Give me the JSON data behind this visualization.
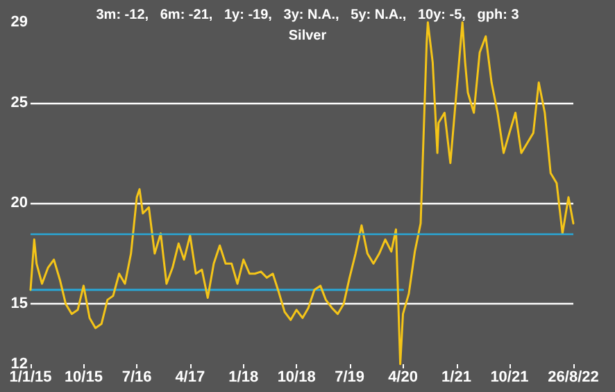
{
  "chart_data": {
    "type": "line",
    "title": "Silver",
    "subtitle": "3m: -12,   6m: -21,   1y: -19,   3y: N.A.,   5y: N.A.,   10y: -5,   gph: 3",
    "xlim": [
      "2015-01-01",
      "2022-08-26"
    ],
    "xticks": [
      {
        "value": "2015-01-01",
        "label": "1/1/15"
      },
      {
        "value": "2015-10-01",
        "label": "10/15"
      },
      {
        "value": "2016-07-01",
        "label": "7/16"
      },
      {
        "value": "2017-04-01",
        "label": "4/17"
      },
      {
        "value": "2018-01-01",
        "label": "1/18"
      },
      {
        "value": "2018-10-01",
        "label": "10/18"
      },
      {
        "value": "2019-07-01",
        "label": "7/19"
      },
      {
        "value": "2020-04-01",
        "label": "4/20"
      },
      {
        "value": "2021-01-01",
        "label": "1/21"
      },
      {
        "value": "2021-10-01",
        "label": "10/21"
      },
      {
        "value": "2022-08-26",
        "label": "26/8/22"
      }
    ],
    "ylim": [
      12,
      29
    ],
    "yticks": [
      12,
      15,
      20,
      25,
      29
    ],
    "grid": "y",
    "marker": "none",
    "line_style": "solid",
    "ref_lines": [
      {
        "axis": "y",
        "value": 18.5,
        "color": "#29a8d8"
      }
    ],
    "series": [
      {
        "color": "#f5c518",
        "x": [
          "2015-01-01",
          "2015-01-20",
          "2015-02-01",
          "2015-03-01",
          "2015-04-01",
          "2015-05-01",
          "2015-06-01",
          "2015-07-01",
          "2015-08-01",
          "2015-09-01",
          "2015-10-01",
          "2015-11-01",
          "2015-12-01",
          "2016-01-01",
          "2016-02-01",
          "2016-03-01",
          "2016-04-01",
          "2016-05-01",
          "2016-06-01",
          "2016-07-01",
          "2016-07-15",
          "2016-08-01",
          "2016-09-01",
          "2016-10-01",
          "2016-11-01",
          "2016-12-01",
          "2017-01-01",
          "2017-02-01",
          "2017-03-01",
          "2017-04-01",
          "2017-05-01",
          "2017-06-01",
          "2017-07-01",
          "2017-08-01",
          "2017-09-01",
          "2017-10-01",
          "2017-11-01",
          "2017-12-01",
          "2018-01-01",
          "2018-02-01",
          "2018-03-01",
          "2018-04-01",
          "2018-05-01",
          "2018-06-01",
          "2018-07-01",
          "2018-08-01",
          "2018-09-01",
          "2018-10-01",
          "2018-11-01",
          "2018-12-01",
          "2019-01-01",
          "2019-02-01",
          "2019-03-01",
          "2019-04-01",
          "2019-05-01",
          "2019-06-01",
          "2019-07-01",
          "2019-08-01",
          "2019-09-01",
          "2019-10-01",
          "2019-11-01",
          "2019-12-01",
          "2020-01-01",
          "2020-02-01",
          "2020-02-25",
          "2020-03-18",
          "2020-04-01",
          "2020-05-01",
          "2020-06-01",
          "2020-07-01",
          "2020-08-01",
          "2020-08-07",
          "2020-09-01",
          "2020-09-25",
          "2020-10-01",
          "2020-11-01",
          "2020-12-01",
          "2021-01-01",
          "2021-02-01",
          "2021-02-15",
          "2021-03-01",
          "2021-04-01",
          "2021-05-01",
          "2021-06-01",
          "2021-07-01",
          "2021-08-01",
          "2021-09-01",
          "2021-10-01",
          "2021-11-01",
          "2021-12-01",
          "2022-01-01",
          "2022-02-01",
          "2022-03-01",
          "2022-04-01",
          "2022-05-01",
          "2022-06-01",
          "2022-07-01",
          "2022-08-01",
          "2022-08-26"
        ],
        "values": [
          15.7,
          18.2,
          17,
          16,
          16.8,
          17.2,
          16.2,
          15,
          14.5,
          14.7,
          15.9,
          14.3,
          13.8,
          14,
          15.2,
          15.4,
          16.5,
          16,
          17.5,
          20.3,
          20.7,
          19.5,
          19.8,
          17.5,
          18.5,
          16,
          16.8,
          18,
          17.2,
          18.4,
          16.5,
          16.7,
          15.3,
          17,
          17.9,
          17,
          17,
          16,
          17.2,
          16.5,
          16.5,
          16.6,
          16.3,
          16.5,
          15.6,
          14.6,
          14.2,
          14.7,
          14.3,
          14.8,
          15.7,
          15.9,
          15.2,
          14.8,
          14.5,
          15,
          16.3,
          17.5,
          18.9,
          17.5,
          17,
          17.5,
          18.2,
          17.6,
          18.7,
          12,
          14.5,
          15.5,
          17.6,
          19,
          28,
          29,
          27,
          22.5,
          24,
          24.5,
          22,
          25.5,
          29,
          27,
          25.5,
          24.5,
          27.5,
          28.3,
          26,
          24.5,
          22.5,
          23.5,
          24.5,
          22.5,
          23,
          23.5,
          26,
          24.5,
          21.5,
          21,
          18.5,
          20.3,
          19
        ]
      },
      {
        "color": "#29a8d8",
        "x": [
          "2015-01-01",
          "2020-04-01"
        ],
        "values": [
          15.7,
          15.7
        ]
      }
    ]
  }
}
